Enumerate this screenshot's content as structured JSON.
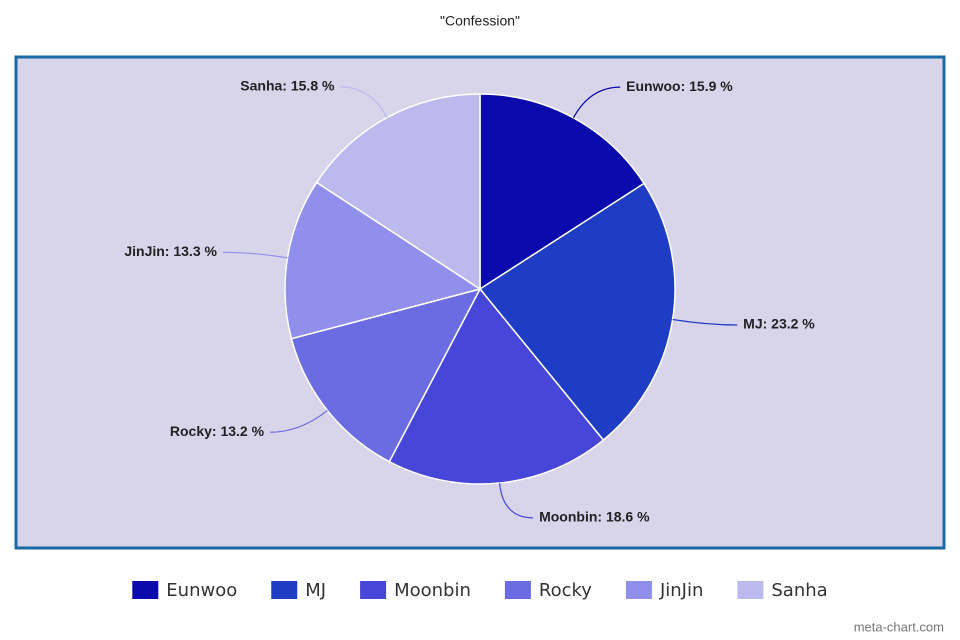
{
  "chart_data": {
    "type": "pie",
    "title": "\"Confession\"",
    "categories": [
      "Eunwoo",
      "MJ",
      "Moonbin",
      "Rocky",
      "JinJin",
      "Sanha"
    ],
    "values": [
      15.9,
      23.2,
      18.6,
      13.2,
      13.3,
      15.8
    ],
    "value_labels": [
      "Eunwoo: 15.9 %",
      "MJ: 23.2 %",
      "Moonbin: 18.6 %",
      "Rocky: 13.2 %",
      "JinJin: 13.3 %",
      "Sanha: 15.8 %"
    ],
    "colors": [
      "#0a0aad",
      "#1e3cc4",
      "#4646d9",
      "#6b6be2",
      "#9090ec",
      "#bcb9ef"
    ],
    "legend": "bottom",
    "watermark": "meta-chart.com"
  }
}
